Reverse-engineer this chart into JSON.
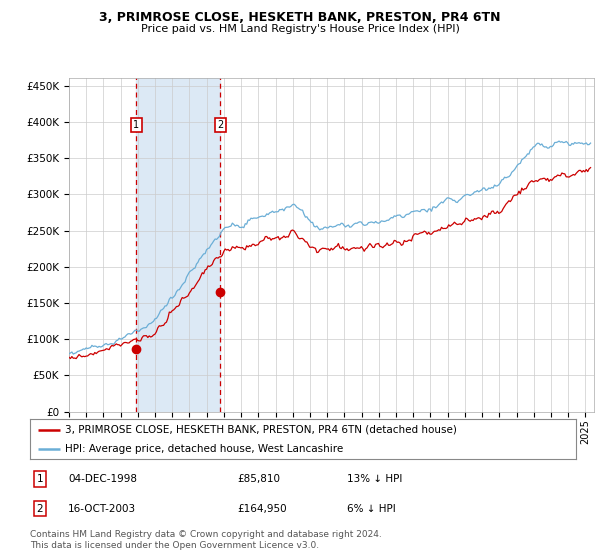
{
  "title": "3, PRIMROSE CLOSE, HESKETH BANK, PRESTON, PR4 6TN",
  "subtitle": "Price paid vs. HM Land Registry's House Price Index (HPI)",
  "legend_line1": "3, PRIMROSE CLOSE, HESKETH BANK, PRESTON, PR4 6TN (detached house)",
  "legend_line2": "HPI: Average price, detached house, West Lancashire",
  "table_rows": [
    {
      "num": "1",
      "date": "04-DEC-1998",
      "price": "£85,810",
      "hpi": "13% ↓ HPI"
    },
    {
      "num": "2",
      "date": "16-OCT-2003",
      "price": "£164,950",
      "hpi": "6% ↓ HPI"
    }
  ],
  "footnote": "Contains HM Land Registry data © Crown copyright and database right 2024.\nThis data is licensed under the Open Government Licence v3.0.",
  "sale1_date_num": 1998.92,
  "sale1_price": 85810,
  "sale2_date_num": 2003.79,
  "sale2_price": 164950,
  "hpi_color": "#6baed6",
  "price_color": "#cc0000",
  "shade_color": "#dce9f5",
  "marker_color": "#cc0000",
  "ylim": [
    0,
    460000
  ],
  "xlim_start": 1995.0,
  "xlim_end": 2025.5,
  "background_color": "#ffffff",
  "grid_color": "#cccccc",
  "yticks": [
    0,
    50000,
    100000,
    150000,
    200000,
    250000,
    300000,
    350000,
    400000,
    450000
  ],
  "yticklabels": [
    "£0",
    "£50K",
    "£100K",
    "£150K",
    "£200K",
    "£250K",
    "£300K",
    "£350K",
    "£400K",
    "£450K"
  ]
}
